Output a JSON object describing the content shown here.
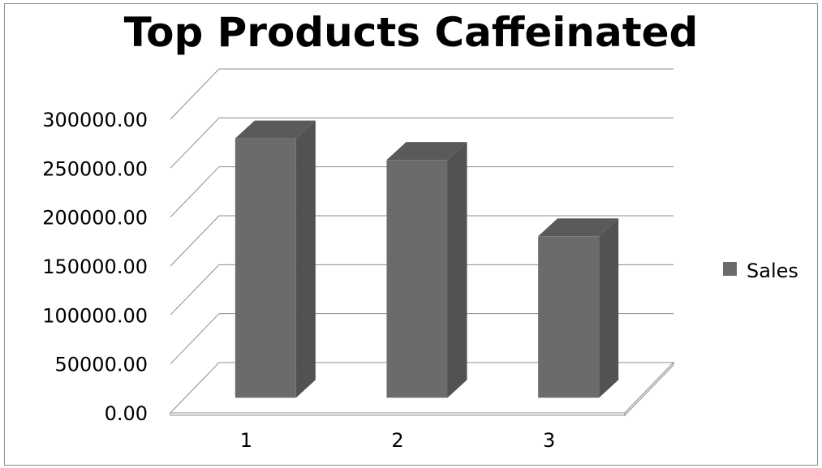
{
  "chart_data": {
    "type": "bar",
    "title": "Top Products Caffeinated",
    "xlabel": "",
    "ylabel": "",
    "categories": [
      "1",
      "2",
      "3"
    ],
    "series": [
      {
        "name": "Sales",
        "values": [
          265000,
          243000,
          165000
        ]
      }
    ],
    "ylim": [
      0,
      300000
    ],
    "y_ticks": [
      0,
      50000,
      100000,
      150000,
      200000,
      250000,
      300000
    ],
    "y_tick_labels": [
      "0.00",
      "50000.00",
      "100000.00",
      "150000.00",
      "200000.00",
      "250000.00",
      "300000.00"
    ],
    "grid": true,
    "legend": "right",
    "style": "3d",
    "colors": {
      "bar_front": "#6b6b6b",
      "bar_side": "#525252",
      "bar_top": "#5a5a5a",
      "grid": "#8c8c8c",
      "frame": "#8c8c8c"
    }
  }
}
